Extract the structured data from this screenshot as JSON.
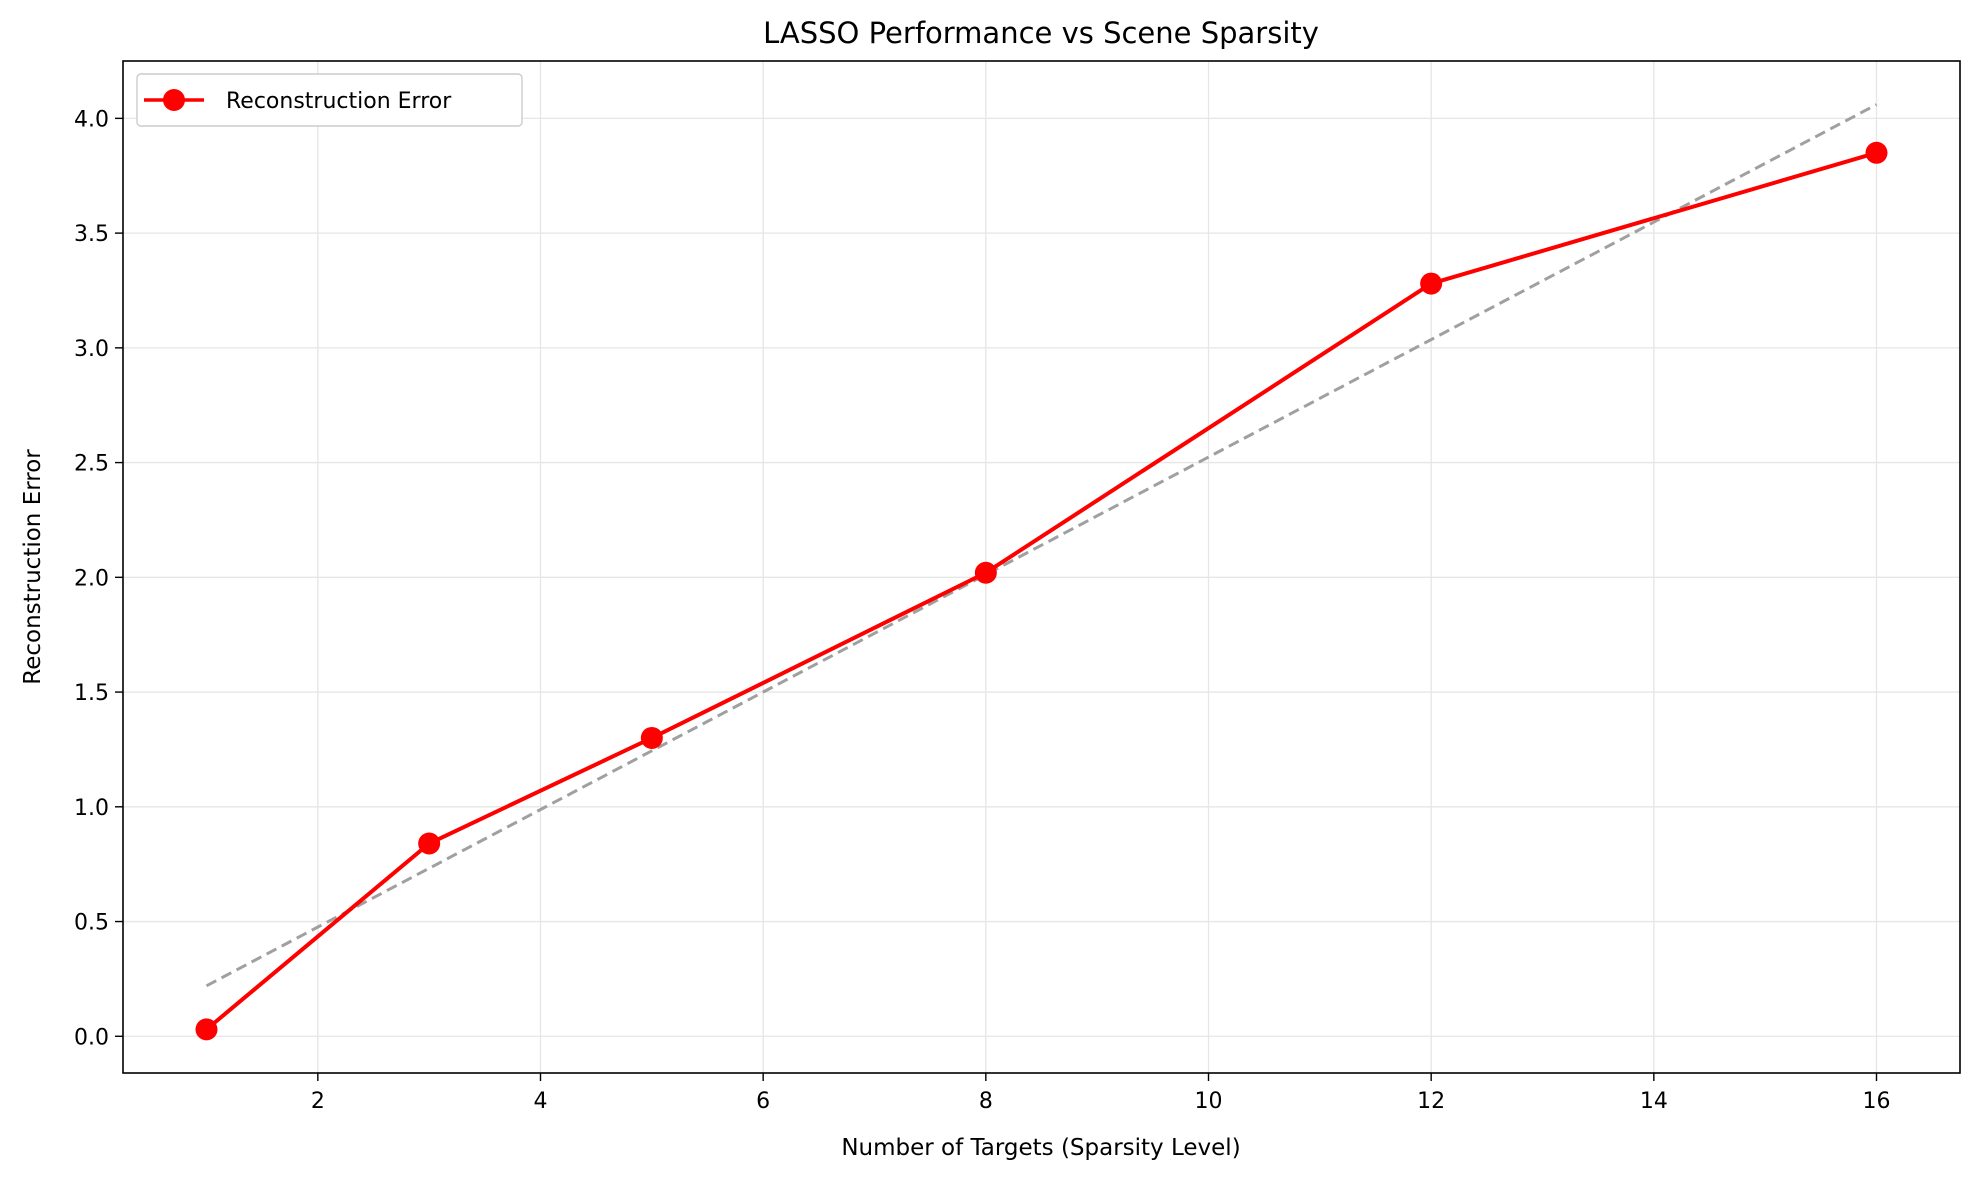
{
  "chart_data": {
    "type": "line",
    "title": "LASSO Performance vs Scene Sparsity",
    "xlabel": "Number of Targets (Sparsity Level)",
    "ylabel": "Reconstruction Error",
    "xlim": [
      0.25,
      16.75
    ],
    "ylim": [
      -0.16,
      4.25
    ],
    "x_ticks": [
      2,
      4,
      6,
      8,
      10,
      12,
      14,
      16
    ],
    "x_tick_labels": [
      "2",
      "4",
      "6",
      "8",
      "10",
      "12",
      "14",
      "16"
    ],
    "y_ticks": [
      0.0,
      0.5,
      1.0,
      1.5,
      2.0,
      2.5,
      3.0,
      3.5,
      4.0
    ],
    "y_tick_labels": [
      "0.0",
      "0.5",
      "1.0",
      "1.5",
      "2.0",
      "2.5",
      "3.0",
      "3.5",
      "4.0"
    ],
    "grid": true,
    "legend_position": "top-left",
    "series": [
      {
        "name": "Reconstruction Error",
        "color": "#ff0000",
        "marker": "circle",
        "x": [
          1,
          3,
          5,
          8,
          12,
          16
        ],
        "y": [
          0.03,
          0.84,
          1.3,
          2.02,
          3.28,
          3.85
        ]
      }
    ],
    "trend_line": {
      "color": "#a0a0a0",
      "style": "dashed",
      "x": [
        1,
        16
      ],
      "y": [
        0.22,
        4.06
      ]
    }
  }
}
